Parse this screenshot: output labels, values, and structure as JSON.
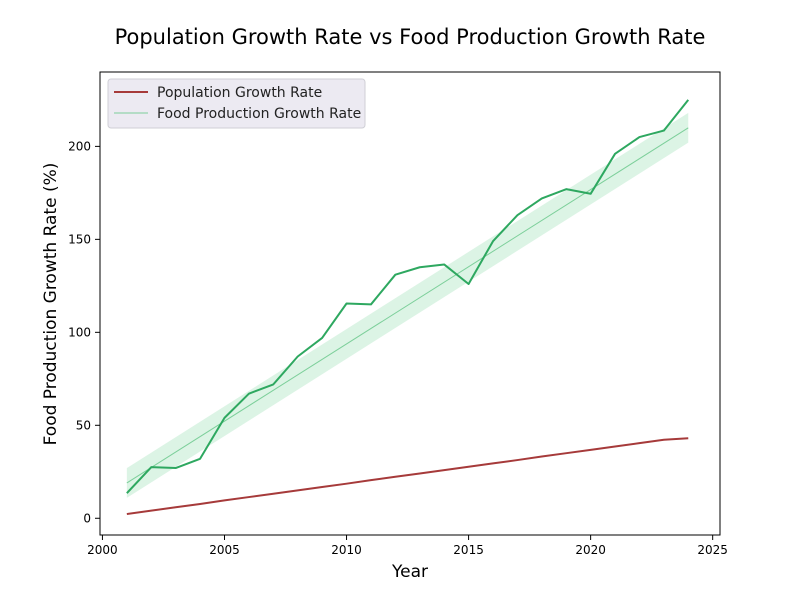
{
  "chart_data": {
    "type": "line",
    "title": "Population Growth Rate vs Food Production Growth Rate",
    "xlabel": "Year",
    "ylabel": "Food Production Growth Rate (%)",
    "xlim": [
      1999.9,
      2025.3
    ],
    "ylim": [
      -9,
      240
    ],
    "x_ticks": [
      2000,
      2005,
      2010,
      2015,
      2020,
      2025
    ],
    "y_ticks": [
      0,
      50,
      100,
      150,
      200
    ],
    "legend_position": "top-left",
    "grid": false,
    "x": [
      2001,
      2002,
      2003,
      2004,
      2005,
      2006,
      2007,
      2008,
      2009,
      2010,
      2011,
      2012,
      2013,
      2014,
      2015,
      2016,
      2017,
      2018,
      2019,
      2020,
      2021,
      2022,
      2023,
      2024
    ],
    "series": [
      {
        "name": "Population Growth Rate",
        "color": "#a63a3a",
        "values": [
          2.3,
          4.1,
          5.9,
          7.7,
          9.6,
          11.4,
          13.2,
          15.0,
          16.8,
          18.6,
          20.5,
          22.3,
          24.1,
          25.9,
          27.7,
          29.5,
          31.3,
          33.2,
          35.0,
          36.8,
          38.6,
          40.4,
          42.2,
          43.0
        ]
      },
      {
        "name": "Food Production Growth Rate",
        "color": "#7ccf9a",
        "trend": "linear",
        "trend_values": [
          19,
          210
        ],
        "confidence_band_color": "#d6f2e0",
        "values": [
          13.5,
          27.5,
          27,
          32,
          54,
          67,
          72,
          87,
          97,
          115.5,
          115,
          131,
          135,
          136.5,
          126,
          149,
          163,
          172,
          177,
          174.5,
          196,
          205,
          208.5,
          225
        ]
      }
    ]
  }
}
